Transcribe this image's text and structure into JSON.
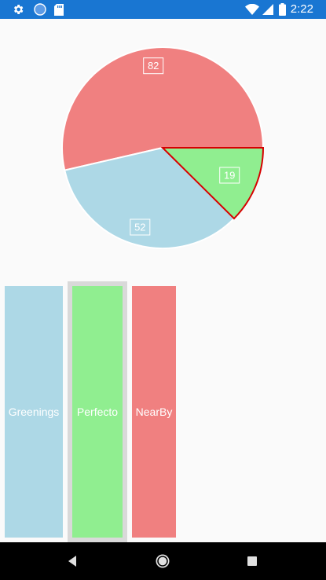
{
  "status_bar": {
    "time": "2:22",
    "background": "#1976d2",
    "left_icons": [
      "gear-icon",
      "sync-circle-icon",
      "sd-card-icon"
    ],
    "right_icons": [
      "wifi-icon",
      "cell-signal-icon",
      "battery-icon"
    ]
  },
  "chart_data": {
    "type": "pie",
    "slices": [
      {
        "label": "NearBy",
        "value": 82,
        "color": "#f08080",
        "selected": false
      },
      {
        "label": "Greenings",
        "value": 52,
        "color": "#add8e6",
        "selected": false
      },
      {
        "label": "Perfecto",
        "value": 19,
        "color": "#90ee90",
        "selected": true
      }
    ],
    "data_labels": [
      "82",
      "52",
      "19"
    ],
    "start_direction": "3 o'clock",
    "direction": "counter-clockwise",
    "selected_outline_color": "#d60000"
  },
  "legend": {
    "items": [
      {
        "label": "Greenings",
        "color": "#add8e6",
        "selected": false
      },
      {
        "label": "Perfecto",
        "color": "#90ee90",
        "selected": true
      },
      {
        "label": "NearBy",
        "color": "#f08080",
        "selected": false
      }
    ],
    "selected_frame_color": "#d9d9d9"
  },
  "nav_bar": {
    "buttons": [
      "back-icon",
      "home-icon",
      "recents-icon"
    ]
  }
}
